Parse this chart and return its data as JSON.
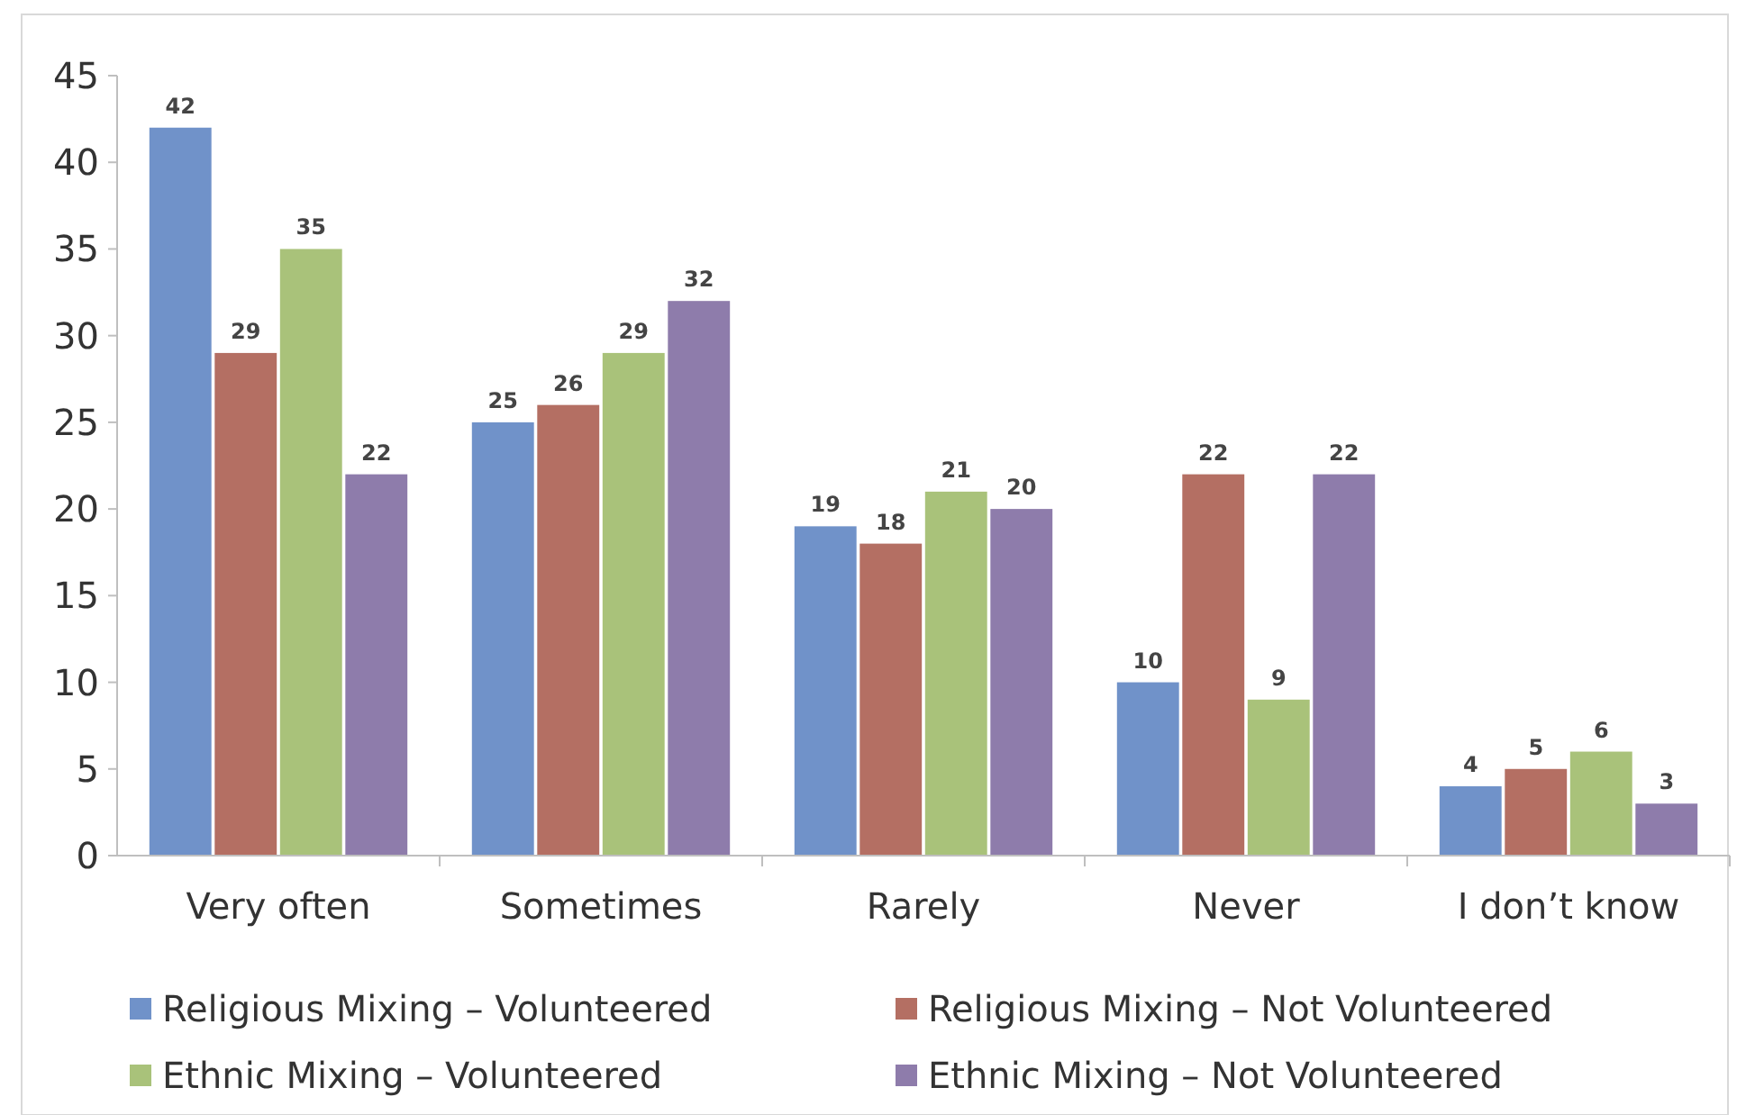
{
  "chart_data": {
    "type": "bar",
    "categories": [
      "Very often",
      "Sometimes",
      "Rarely",
      "Never",
      "I don’t know"
    ],
    "series": [
      {
        "name": "Religious Mixing – Volunteered",
        "color": "#7092c9",
        "values": [
          42,
          25,
          19,
          10,
          4
        ]
      },
      {
        "name": "Religious Mixing – Not Volunteered",
        "color": "#b46f63",
        "values": [
          29,
          26,
          18,
          22,
          5
        ]
      },
      {
        "name": "Ethnic Mixing – Volunteered",
        "color": "#a9c27a",
        "values": [
          35,
          29,
          21,
          9,
          6
        ]
      },
      {
        "name": "Ethnic Mixing – Not Volunteered",
        "color": "#8e7cab",
        "values": [
          22,
          32,
          20,
          22,
          3
        ]
      }
    ],
    "ylim": [
      0,
      45
    ],
    "yticks": [
      0,
      5,
      10,
      15,
      20,
      25,
      30,
      35,
      40,
      45
    ],
    "data_labels": true,
    "legend": "bottom"
  }
}
